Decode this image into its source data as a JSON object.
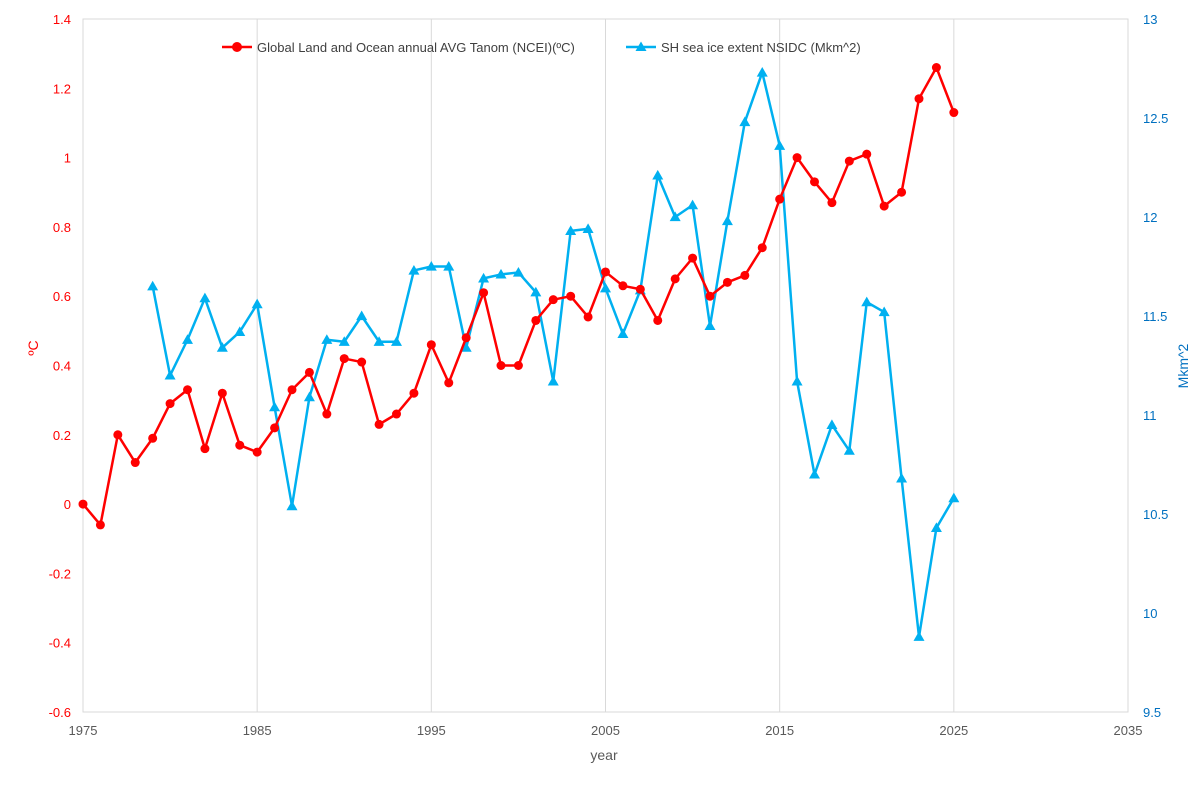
{
  "chart_data": {
    "type": "line",
    "xlabel": "year",
    "ylabel_left": "ºC",
    "ylabel_right": "Mkm^2",
    "xlim": [
      1975,
      2035
    ],
    "ylim_left": [
      -0.6,
      1.4
    ],
    "ylim_right": [
      9.5,
      13
    ],
    "x_ticks": [
      1975,
      1985,
      1995,
      2005,
      2015,
      2025,
      2035
    ],
    "y_left_ticks": [
      -0.6,
      -0.4,
      -0.2,
      0,
      0.2,
      0.4,
      0.6,
      0.8,
      1,
      1.2,
      1.4
    ],
    "y_left_tick_labels": [
      "-0.6",
      "-0.4",
      "-0.2",
      "0",
      "0.2",
      "0.4",
      "0.6",
      "0.8",
      "1",
      "1.2",
      "1.4"
    ],
    "y_right_ticks": [
      9.5,
      10,
      10.5,
      11,
      11.5,
      12,
      12.5,
      13
    ],
    "y_right_tick_labels": [
      "9.5",
      "10",
      "10.5",
      "11",
      "11.5",
      "12",
      "12.5",
      "13"
    ],
    "grid": "vertical",
    "legend_position": "top-center",
    "series": [
      {
        "name": "Global Land and Ocean annual AVG Tanom (NCEI)(ºC)",
        "axis": "left",
        "color": "#ff0000",
        "marker": "circle",
        "x": [
          1975,
          1976,
          1977,
          1978,
          1979,
          1980,
          1981,
          1982,
          1983,
          1984,
          1985,
          1986,
          1987,
          1988,
          1989,
          1990,
          1991,
          1992,
          1993,
          1994,
          1995,
          1996,
          1997,
          1998,
          1999,
          2000,
          2001,
          2002,
          2003,
          2004,
          2005,
          2006,
          2007,
          2008,
          2009,
          2010,
          2011,
          2012,
          2013,
          2014,
          2015,
          2016,
          2017,
          2018,
          2019,
          2020,
          2021,
          2022,
          2023,
          2024,
          2025
        ],
        "values": [
          0.0,
          -0.06,
          0.2,
          0.12,
          0.19,
          0.29,
          0.33,
          0.16,
          0.32,
          0.17,
          0.15,
          0.22,
          0.33,
          0.38,
          0.26,
          0.42,
          0.41,
          0.23,
          0.26,
          0.32,
          0.46,
          0.35,
          0.48,
          0.61,
          0.4,
          0.4,
          0.53,
          0.59,
          0.6,
          0.54,
          0.67,
          0.63,
          0.62,
          0.53,
          0.65,
          0.71,
          0.6,
          0.64,
          0.66,
          0.74,
          0.88,
          1.0,
          0.93,
          0.87,
          0.99,
          1.01,
          0.86,
          0.9,
          1.17,
          1.26,
          1.13
        ]
      },
      {
        "name": "SH sea ice extent NSIDC (Mkm^2)",
        "axis": "right",
        "color": "#00b0f0",
        "marker": "triangle",
        "x": [
          1979,
          1980,
          1981,
          1982,
          1983,
          1984,
          1985,
          1986,
          1987,
          1988,
          1989,
          1990,
          1991,
          1992,
          1993,
          1994,
          1995,
          1996,
          1997,
          1998,
          1999,
          2000,
          2001,
          2002,
          2003,
          2004,
          2005,
          2006,
          2007,
          2008,
          2009,
          2010,
          2011,
          2012,
          2013,
          2014,
          2015,
          2016,
          2017,
          2018,
          2019,
          2020,
          2021,
          2022,
          2023,
          2024,
          2025
        ],
        "values": [
          11.65,
          11.2,
          11.38,
          11.59,
          11.34,
          11.42,
          11.56,
          11.04,
          10.54,
          11.09,
          11.38,
          11.37,
          11.5,
          11.37,
          11.37,
          11.73,
          11.75,
          11.75,
          11.34,
          11.69,
          11.71,
          11.72,
          11.62,
          11.17,
          11.93,
          11.94,
          11.64,
          11.41,
          11.63,
          12.21,
          12.0,
          12.06,
          11.45,
          11.98,
          12.48,
          12.73,
          12.36,
          11.17,
          10.7,
          10.95,
          10.82,
          11.57,
          11.52,
          10.68,
          9.88,
          10.43,
          10.58
        ]
      }
    ]
  }
}
